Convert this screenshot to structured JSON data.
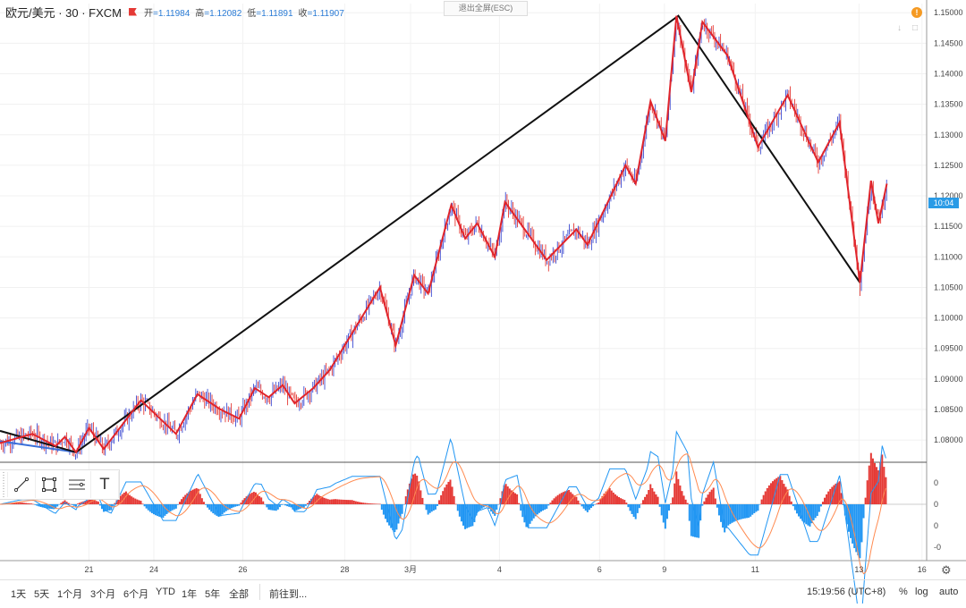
{
  "header": {
    "symbol": "欧元/美元 · 30 · FXCM",
    "open_label": "开",
    "open": "=1.11984",
    "high_label": "高",
    "high": "=1.12082",
    "low_label": "低",
    "low": "=1.11891",
    "close_label": "收",
    "close": "=1.11907"
  },
  "exit_fullscreen_label": "退出全屏(ESC)",
  "alert_icon_glyph": "!",
  "current_price_tag": "10:04",
  "toolbar_icons": [
    "trend-line-icon",
    "rectangle-icon",
    "fib-lines-icon",
    "text-tool-icon"
  ],
  "text_tool_glyph": "T",
  "bottom_bar": {
    "ranges": [
      "1天",
      "5天",
      "1个月",
      "3个月",
      "6个月",
      "YTD",
      "1年",
      "5年",
      "全部"
    ],
    "goto": "前往到...",
    "clock": "15:19:56 (UTC+8)",
    "pct": "%",
    "log": "log",
    "auto": "auto"
  },
  "colors": {
    "candle_up": "#3d4bd1",
    "candle_down": "#e53935",
    "zigzag": "#e0242b",
    "big_swing": "#111111",
    "start_segment": "#3a6fd8",
    "hist_pos": "#e53935",
    "hist_neg": "#2196f3",
    "macd_line": "#2196f3",
    "signal_line": "#ff8a50"
  },
  "chart_data": {
    "type": "line",
    "symbol": "EUR/USD",
    "timeframe": "30",
    "x_tick_labels": [
      "21",
      "24",
      "26",
      "28",
      "3月",
      "4",
      "6",
      "9",
      "11",
      "13",
      "16"
    ],
    "y_tick_labels": [
      "1.15000",
      "1.14500",
      "1.14000",
      "1.13500",
      "1.13000",
      "1.12500",
      "1.12000",
      "1.11500",
      "1.11000",
      "1.10500",
      "1.10000",
      "1.09500",
      "1.09000",
      "1.08500",
      "1.08000"
    ],
    "ylim": [
      1.0765,
      1.1515
    ],
    "x_index_range": [
      0,
      1000
    ],
    "x_tick_index": [
      96,
      166,
      262,
      372,
      443,
      539,
      647,
      717,
      815,
      927,
      995
    ],
    "grid": true,
    "zigzag": [
      [
        0,
        1.0795
      ],
      [
        35,
        1.081
      ],
      [
        60,
        1.079
      ],
      [
        70,
        1.0805
      ],
      [
        82,
        1.078
      ],
      [
        96,
        1.082
      ],
      [
        112,
        1.0785
      ],
      [
        152,
        1.0865
      ],
      [
        190,
        1.081
      ],
      [
        213,
        1.0875
      ],
      [
        238,
        1.085
      ],
      [
        258,
        1.0835
      ],
      [
        275,
        1.0885
      ],
      [
        290,
        1.087
      ],
      [
        305,
        1.089
      ],
      [
        318,
        1.086
      ],
      [
        338,
        1.0885
      ],
      [
        356,
        1.0915
      ],
      [
        410,
        1.105
      ],
      [
        427,
        1.0955
      ],
      [
        447,
        1.107
      ],
      [
        462,
        1.104
      ],
      [
        487,
        1.1185
      ],
      [
        502,
        1.113
      ],
      [
        515,
        1.1155
      ],
      [
        534,
        1.11
      ],
      [
        545,
        1.119
      ],
      [
        590,
        1.1095
      ],
      [
        622,
        1.1145
      ],
      [
        634,
        1.112
      ],
      [
        675,
        1.125
      ],
      [
        686,
        1.122
      ],
      [
        702,
        1.1355
      ],
      [
        718,
        1.129
      ],
      [
        730,
        1.1495
      ],
      [
        746,
        1.137
      ],
      [
        758,
        1.1485
      ],
      [
        785,
        1.143
      ],
      [
        818,
        1.128
      ],
      [
        850,
        1.1365
      ],
      [
        883,
        1.1255
      ],
      [
        906,
        1.132
      ],
      [
        928,
        1.1058
      ],
      [
        940,
        1.1225
      ],
      [
        948,
        1.1155
      ],
      [
        957,
        1.122
      ]
    ],
    "big_swing": [
      [
        0,
        1.0815
      ],
      [
        82,
        1.078
      ],
      [
        732,
        1.1495
      ],
      [
        928,
        1.1058
      ]
    ],
    "start_segment": [
      [
        0,
        1.0798
      ],
      [
        82,
        1.078
      ]
    ],
    "macd_zero_labels": [
      "0",
      "0",
      "0",
      "-0",
      "-0"
    ]
  }
}
